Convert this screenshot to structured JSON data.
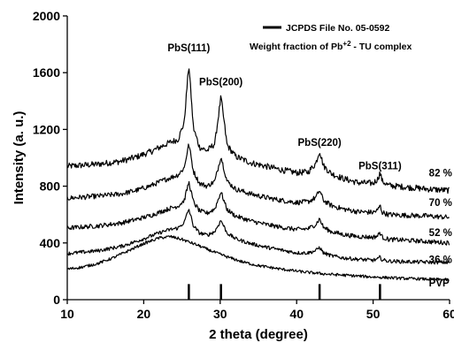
{
  "chart_data": {
    "type": "line",
    "xlabel": "2 theta (degree)",
    "ylabel": "Intensity (a. u.)",
    "xlim": [
      10,
      60
    ],
    "ylim": [
      0,
      2000
    ],
    "x_ticks": [
      10,
      20,
      30,
      40,
      50,
      60
    ],
    "y_ticks": [
      0,
      400,
      800,
      1200,
      1600,
      2000
    ],
    "grid": false,
    "legend": {
      "placement": "top-right",
      "series_label": "JCPDS File No. 05-0592",
      "title_text": "Weight fraction of Pb+2 - TU complex",
      "title_prefix": "Weight fraction of Pb",
      "title_superscript": "+2",
      "title_suffix": " - TU complex"
    },
    "reference_lines": {
      "name": "JCPDS File No. 05-0592",
      "x": [
        25.9,
        30.1,
        43.0,
        50.9
      ],
      "height": 110
    },
    "peak_labels": [
      {
        "text": "PbS(111)",
        "x": 25.9,
        "y": 1750
      },
      {
        "text": "PbS(200)",
        "x": 30.1,
        "y": 1510
      },
      {
        "text": "PbS(220)",
        "x": 43.0,
        "y": 1085
      },
      {
        "text": "PbS(311)",
        "x": 50.9,
        "y": 920
      }
    ],
    "series": [
      {
        "name": "82 %",
        "label_x": 57.3,
        "label_y": 870,
        "x": [
          10,
          14,
          17,
          19,
          21,
          22.5,
          23.5,
          24.5,
          25.3,
          25.9,
          26.5,
          27.3,
          28.3,
          29.3,
          30.1,
          30.9,
          32,
          34,
          36,
          38,
          40,
          41.5,
          42.5,
          43,
          43.5,
          44.5,
          46,
          48,
          50,
          50.6,
          50.9,
          51.2,
          52,
          54,
          57,
          60
        ],
        "y": [
          940,
          955,
          975,
          1005,
          1045,
          1085,
          1110,
          1130,
          1250,
          1660,
          1210,
          1075,
          1050,
          1100,
          1430,
          1090,
          1010,
          965,
          940,
          915,
          895,
          900,
          960,
          1050,
          945,
          890,
          855,
          825,
          820,
          850,
          895,
          835,
          805,
          795,
          780,
          770
        ],
        "noise": 22
      },
      {
        "name": "70 %",
        "label_x": 57.3,
        "label_y": 660,
        "x": [
          10,
          14,
          17,
          19,
          21,
          22.5,
          23.5,
          24.5,
          25.3,
          25.9,
          26.5,
          27.3,
          28.3,
          29.3,
          30.1,
          30.9,
          32,
          34,
          36,
          38,
          40,
          41.5,
          42.5,
          43,
          43.5,
          44.5,
          46,
          48,
          50,
          50.6,
          50.9,
          51.2,
          52,
          54,
          57,
          60
        ],
        "y": [
          715,
          730,
          745,
          770,
          805,
          840,
          860,
          880,
          930,
          1100,
          905,
          820,
          800,
          835,
          1010,
          835,
          780,
          745,
          720,
          700,
          685,
          690,
          720,
          770,
          700,
          665,
          640,
          620,
          615,
          630,
          665,
          615,
          600,
          595,
          590,
          580
        ],
        "noise": 18
      },
      {
        "name": "52 %",
        "label_x": 57.3,
        "label_y": 448,
        "x": [
          10,
          14,
          17,
          19,
          21,
          22.5,
          23.5,
          24.5,
          25.3,
          25.9,
          26.5,
          27.3,
          28.3,
          29.3,
          30.1,
          30.9,
          32,
          34,
          36,
          38,
          40,
          41.5,
          42.5,
          43,
          43.5,
          44.5,
          46,
          48,
          50,
          50.6,
          50.9,
          51.2,
          52,
          54,
          57,
          60
        ],
        "y": [
          505,
          520,
          540,
          565,
          595,
          625,
          645,
          660,
          700,
          830,
          690,
          625,
          610,
          640,
          760,
          635,
          590,
          555,
          530,
          510,
          495,
          500,
          530,
          570,
          510,
          480,
          460,
          445,
          440,
          450,
          475,
          440,
          425,
          420,
          410,
          400
        ],
        "noise": 16
      },
      {
        "name": "36 %",
        "label_x": 57.3,
        "label_y": 258,
        "x": [
          10,
          14,
          17,
          19,
          21,
          22.5,
          23.5,
          24.5,
          25.3,
          25.9,
          26.5,
          27.3,
          28.3,
          29.3,
          30.1,
          30.9,
          32,
          34,
          36,
          38,
          40,
          41.5,
          42.5,
          43,
          43.5,
          44.5,
          46,
          48,
          50,
          50.6,
          50.9,
          51.2,
          52,
          54,
          57,
          60
        ],
        "y": [
          325,
          345,
          375,
          410,
          450,
          480,
          495,
          505,
          545,
          640,
          520,
          470,
          455,
          480,
          560,
          470,
          430,
          395,
          370,
          350,
          330,
          330,
          345,
          370,
          330,
          310,
          295,
          285,
          278,
          285,
          300,
          280,
          272,
          268,
          265,
          262
        ],
        "noise": 13
      },
      {
        "name": "PVP",
        "label_x": 57.3,
        "label_y": 95,
        "x": [
          10,
          12,
          14,
          16,
          18,
          20,
          22,
          23.5,
          25,
          27,
          29,
          31,
          33,
          35,
          38,
          41,
          44,
          47,
          50,
          54,
          57,
          60
        ],
        "y": [
          215,
          230,
          255,
          295,
          345,
          395,
          435,
          445,
          425,
          385,
          340,
          300,
          265,
          240,
          215,
          195,
          180,
          170,
          160,
          150,
          145,
          140
        ],
        "noise": 10
      }
    ]
  }
}
